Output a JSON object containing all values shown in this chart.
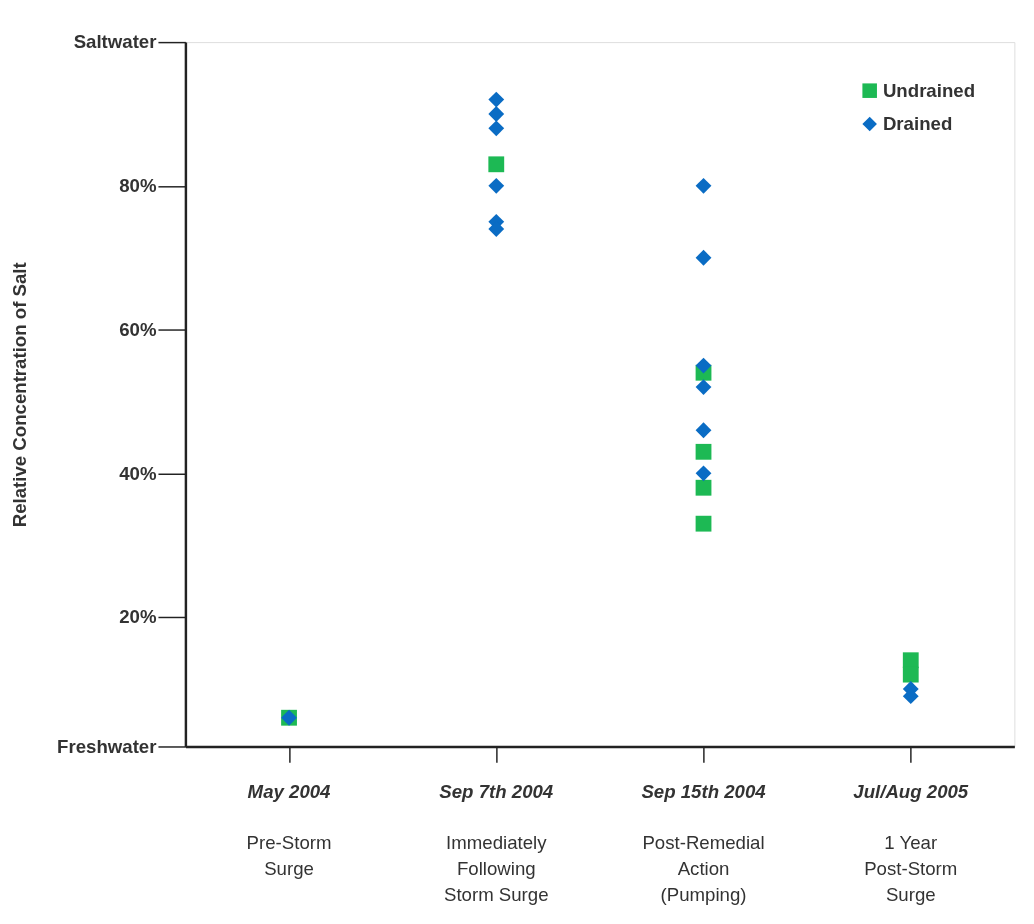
{
  "chart_data": {
    "type": "scatter",
    "ylabel": "Relative Concentration of Salt",
    "categories": [
      "May 2004\nPre-Storm\nSurge",
      "Sep 7th 2004\nImmediately\nFollowing\nStorm Surge",
      "Sep 15th 2004\nPost-Remedial\nAction\n(Pumping)",
      "Jul/Aug 2005\n1 Year\nPost-Storm\nSurge"
    ],
    "ylim": [
      2,
      100
    ],
    "yticks": [
      {
        "value": 2,
        "label": "Freshwater"
      },
      {
        "value": 20,
        "label": "20%"
      },
      {
        "value": 40,
        "label": "40%"
      },
      {
        "value": 60,
        "label": "60%"
      },
      {
        "value": 80,
        "label": "80%"
      },
      {
        "value": 100,
        "label": "Saltwater"
      }
    ],
    "grid": false,
    "legend": "top right",
    "series": [
      {
        "name": "Undrained",
        "color": "#1db954",
        "marker": "square",
        "x": [
          "May 2004\nPre-Storm\nSurge",
          "Sep 7th 2004\nImmediately\nFollowing\nStorm Surge",
          "Sep 15th 2004\nPost-Remedial\nAction\n(Pumping)",
          "Sep 15th 2004\nPost-Remedial\nAction\n(Pumping)",
          "Sep 15th 2004\nPost-Remedial\nAction\n(Pumping)",
          "Sep 15th 2004\nPost-Remedial\nAction\n(Pumping)",
          "Jul/Aug 2005\n1 Year\nPost-Storm\nSurge",
          "Jul/Aug 2005\n1 Year\nPost-Storm\nSurge"
        ],
        "values": [
          6,
          83,
          54,
          43,
          38,
          33,
          14,
          12
        ]
      },
      {
        "name": "Drained",
        "color": "#0a6cc4",
        "marker": "diamond",
        "x": [
          "May 2004\nPre-Storm\nSurge",
          "Sep 7th 2004\nImmediately\nFollowing\nStorm Surge",
          "Sep 7th 2004\nImmediately\nFollowing\nStorm Surge",
          "Sep 7th 2004\nImmediately\nFollowing\nStorm Surge",
          "Sep 7th 2004\nImmediately\nFollowing\nStorm Surge",
          "Sep 7th 2004\nImmediately\nFollowing\nStorm Surge",
          "Sep 7th 2004\nImmediately\nFollowing\nStorm Surge",
          "Sep 15th 2004\nPost-Remedial\nAction\n(Pumping)",
          "Sep 15th 2004\nPost-Remedial\nAction\n(Pumping)",
          "Sep 15th 2004\nPost-Remedial\nAction\n(Pumping)",
          "Sep 15th 2004\nPost-Remedial\nAction\n(Pumping)",
          "Sep 15th 2004\nPost-Remedial\nAction\n(Pumping)",
          "Sep 15th 2004\nPost-Remedial\nAction\n(Pumping)",
          "Jul/Aug 2005\n1 Year\nPost-Storm\nSurge",
          "Jul/Aug 2005\n1 Year\nPost-Storm\nSurge"
        ],
        "values": [
          6,
          92,
          90,
          88,
          80,
          75,
          74,
          80,
          70,
          55,
          52,
          46,
          40,
          10,
          9
        ]
      }
    ]
  }
}
